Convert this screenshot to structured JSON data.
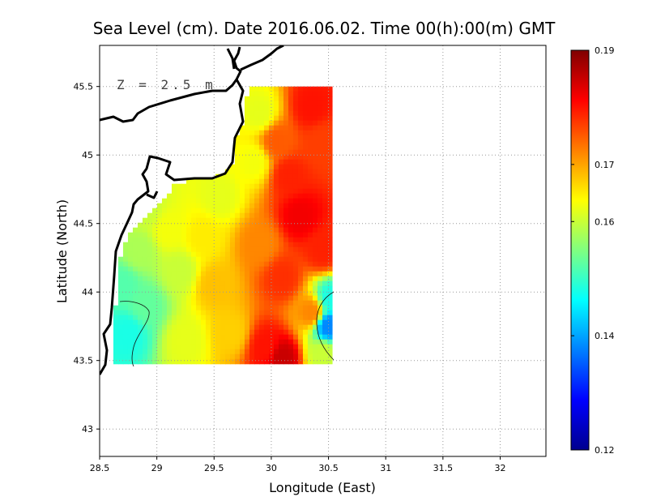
{
  "chart_data": {
    "type": "heatmap",
    "title": "Sea Level (cm). Date 2016.06.02. Time 00(h):00(m) GMT",
    "xlabel": "Longitude (East)",
    "ylabel": "Latitude (North)",
    "annotation": "Z = 2.5 m",
    "xlim": [
      28.5,
      32.4
    ],
    "ylim": [
      42.8,
      45.8
    ],
    "x_ticks": [
      "28.5",
      "29",
      "29.5",
      "30",
      "30.5",
      "31",
      "31.5",
      "32"
    ],
    "y_ticks": [
      "43",
      "43.5",
      "44",
      "44.5",
      "45",
      "45.5"
    ],
    "grid": true,
    "colorbar": {
      "min": 0.12,
      "max": 0.19,
      "ticks": [
        "0.12",
        "0.14",
        "0.16",
        "0.17",
        "0.19"
      ]
    },
    "field_extent": {
      "lon": [
        28.62,
        30.55
      ],
      "lat": [
        43.48,
        45.5
      ]
    },
    "field_points": [
      {
        "lon": 28.75,
        "lat": 43.7,
        "value": 0.148
      },
      {
        "lon": 28.7,
        "lat": 44.05,
        "value": 0.152
      },
      {
        "lon": 28.9,
        "lat": 43.9,
        "value": 0.153
      },
      {
        "lon": 28.85,
        "lat": 44.3,
        "value": 0.158
      },
      {
        "lon": 28.9,
        "lat": 44.6,
        "value": 0.16
      },
      {
        "lon": 29.1,
        "lat": 44.45,
        "value": 0.163
      },
      {
        "lon": 29.2,
        "lat": 44.15,
        "value": 0.16
      },
      {
        "lon": 29.25,
        "lat": 43.65,
        "value": 0.162
      },
      {
        "lon": 29.4,
        "lat": 44.4,
        "value": 0.165
      },
      {
        "lon": 29.55,
        "lat": 44.7,
        "value": 0.162
      },
      {
        "lon": 29.5,
        "lat": 44.05,
        "value": 0.168
      },
      {
        "lon": 29.65,
        "lat": 43.7,
        "value": 0.167
      },
      {
        "lon": 29.85,
        "lat": 44.95,
        "value": 0.163
      },
      {
        "lon": 29.9,
        "lat": 45.3,
        "value": 0.162
      },
      {
        "lon": 29.9,
        "lat": 44.35,
        "value": 0.172
      },
      {
        "lon": 30.05,
        "lat": 45.1,
        "value": 0.175
      },
      {
        "lon": 30.1,
        "lat": 44.1,
        "value": 0.178
      },
      {
        "lon": 30.15,
        "lat": 44.85,
        "value": 0.179
      },
      {
        "lon": 30.25,
        "lat": 44.55,
        "value": 0.182
      },
      {
        "lon": 30.35,
        "lat": 45.35,
        "value": 0.18
      },
      {
        "lon": 30.45,
        "lat": 45.1,
        "value": 0.177
      },
      {
        "lon": 30.45,
        "lat": 44.3,
        "value": 0.179
      },
      {
        "lon": 30.35,
        "lat": 43.85,
        "value": 0.172
      },
      {
        "lon": 30.1,
        "lat": 43.52,
        "value": 0.185
      },
      {
        "lon": 29.95,
        "lat": 43.6,
        "value": 0.18
      },
      {
        "lon": 30.5,
        "lat": 43.75,
        "value": 0.138
      },
      {
        "lon": 30.52,
        "lat": 43.95,
        "value": 0.148
      },
      {
        "lon": 30.45,
        "lat": 43.55,
        "value": 0.16
      }
    ]
  }
}
